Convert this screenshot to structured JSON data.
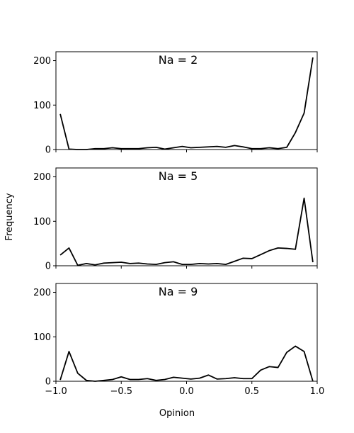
{
  "chart_data": [
    {
      "type": "line",
      "title": "Na = 2",
      "color": "#000000",
      "x": [
        -0.967,
        -0.9,
        -0.833,
        -0.767,
        -0.7,
        -0.633,
        -0.567,
        -0.5,
        -0.433,
        -0.367,
        -0.3,
        -0.233,
        -0.167,
        -0.1,
        -0.033,
        0.033,
        0.1,
        0.167,
        0.233,
        0.3,
        0.367,
        0.433,
        0.5,
        0.567,
        0.633,
        0.7,
        0.767,
        0.833,
        0.9,
        0.967
      ],
      "values": [
        80,
        1,
        0,
        0,
        2,
        2,
        4,
        2,
        2,
        2,
        4,
        5,
        1,
        4,
        7,
        4,
        5,
        6,
        7,
        5,
        9,
        6,
        2,
        2,
        4,
        2,
        5,
        38,
        82,
        207
      ],
      "xlim": [
        -1,
        1
      ],
      "ylim": [
        0,
        220
      ],
      "yticks": [
        0,
        100,
        200
      ]
    },
    {
      "type": "line",
      "title": "Na = 5",
      "color": "#000000",
      "ylabel": "Frequency",
      "x": [
        -0.967,
        -0.9,
        -0.833,
        -0.767,
        -0.7,
        -0.633,
        -0.567,
        -0.5,
        -0.433,
        -0.367,
        -0.3,
        -0.233,
        -0.167,
        -0.1,
        -0.033,
        0.033,
        0.1,
        0.167,
        0.233,
        0.3,
        0.367,
        0.433,
        0.5,
        0.567,
        0.633,
        0.7,
        0.767,
        0.833,
        0.9,
        0.967
      ],
      "values": [
        24,
        40,
        1,
        5,
        2,
        6,
        7,
        8,
        5,
        6,
        4,
        3,
        7,
        9,
        3,
        3,
        5,
        4,
        5,
        3,
        10,
        17,
        16,
        25,
        34,
        40,
        39,
        37,
        152,
        8
      ],
      "xlim": [
        -1,
        1
      ],
      "ylim": [
        0,
        220
      ],
      "yticks": [
        0,
        100,
        200
      ]
    },
    {
      "type": "line",
      "title": "Na = 9",
      "color": "#000000",
      "xlabel": "Opinion",
      "x": [
        -0.967,
        -0.9,
        -0.833,
        -0.767,
        -0.7,
        -0.633,
        -0.567,
        -0.5,
        -0.433,
        -0.367,
        -0.3,
        -0.233,
        -0.167,
        -0.1,
        -0.033,
        0.033,
        0.1,
        0.167,
        0.233,
        0.3,
        0.367,
        0.433,
        0.5,
        0.567,
        0.633,
        0.7,
        0.767,
        0.833,
        0.9,
        0.967
      ],
      "values": [
        3,
        67,
        18,
        2,
        0,
        2,
        4,
        10,
        4,
        4,
        6,
        2,
        4,
        9,
        7,
        5,
        7,
        14,
        5,
        6,
        8,
        6,
        6,
        25,
        33,
        31,
        65,
        79,
        67,
        0
      ],
      "xlim": [
        -1,
        1
      ],
      "ylim": [
        0,
        220
      ],
      "yticks": [
        0,
        100,
        200
      ],
      "xticks": [
        {
          "value": -1,
          "label": "−1.0"
        },
        {
          "value": -0.5,
          "label": "−0.5"
        },
        {
          "value": 0,
          "label": "0.0"
        },
        {
          "value": 0.5,
          "label": "0.5"
        },
        {
          "value": 1,
          "label": "1.0"
        }
      ]
    }
  ]
}
